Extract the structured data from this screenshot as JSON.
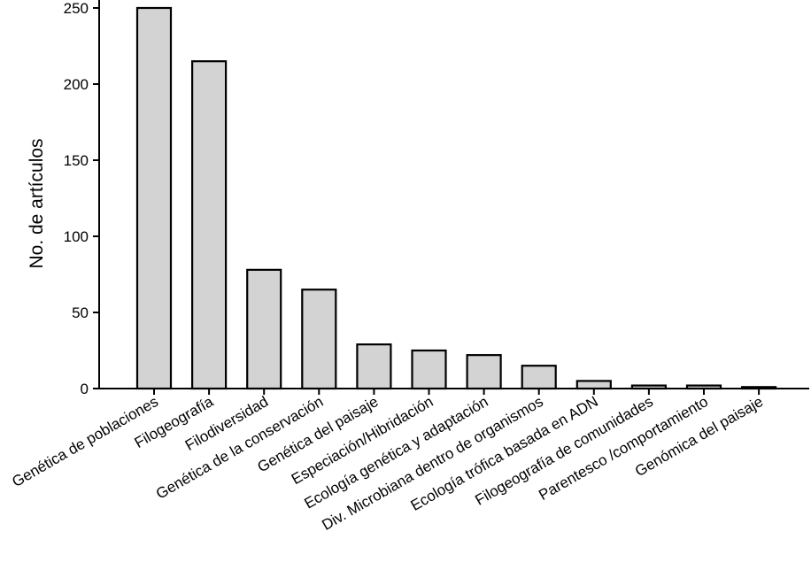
{
  "chart_data": {
    "type": "bar",
    "title": "",
    "xlabel": "",
    "ylabel": "No. de artículos",
    "ylim": [
      0,
      250
    ],
    "yticks": [
      0,
      50,
      100,
      150,
      200,
      250
    ],
    "grid": false,
    "categories": [
      "Genética de poblaciones",
      "Filogeografía",
      "Filodiversidad",
      "Genética de la conservación",
      "Genética del paisaje",
      "Especiación/Hibridación",
      "Ecología genética y adaptación",
      "Div. Microbiana dentro de organismos",
      "Ecología trófica basada en ADN",
      "Filogeografía de comunidades",
      "Parentesco /comportamiento",
      "Genómica del paisaje"
    ],
    "values": [
      250,
      215,
      78,
      65,
      29,
      25,
      22,
      15,
      5,
      2,
      2,
      1
    ],
    "colors": {
      "bar_fill": "#d3d3d3",
      "bar_stroke": "#000000",
      "axis": "#000000"
    }
  }
}
